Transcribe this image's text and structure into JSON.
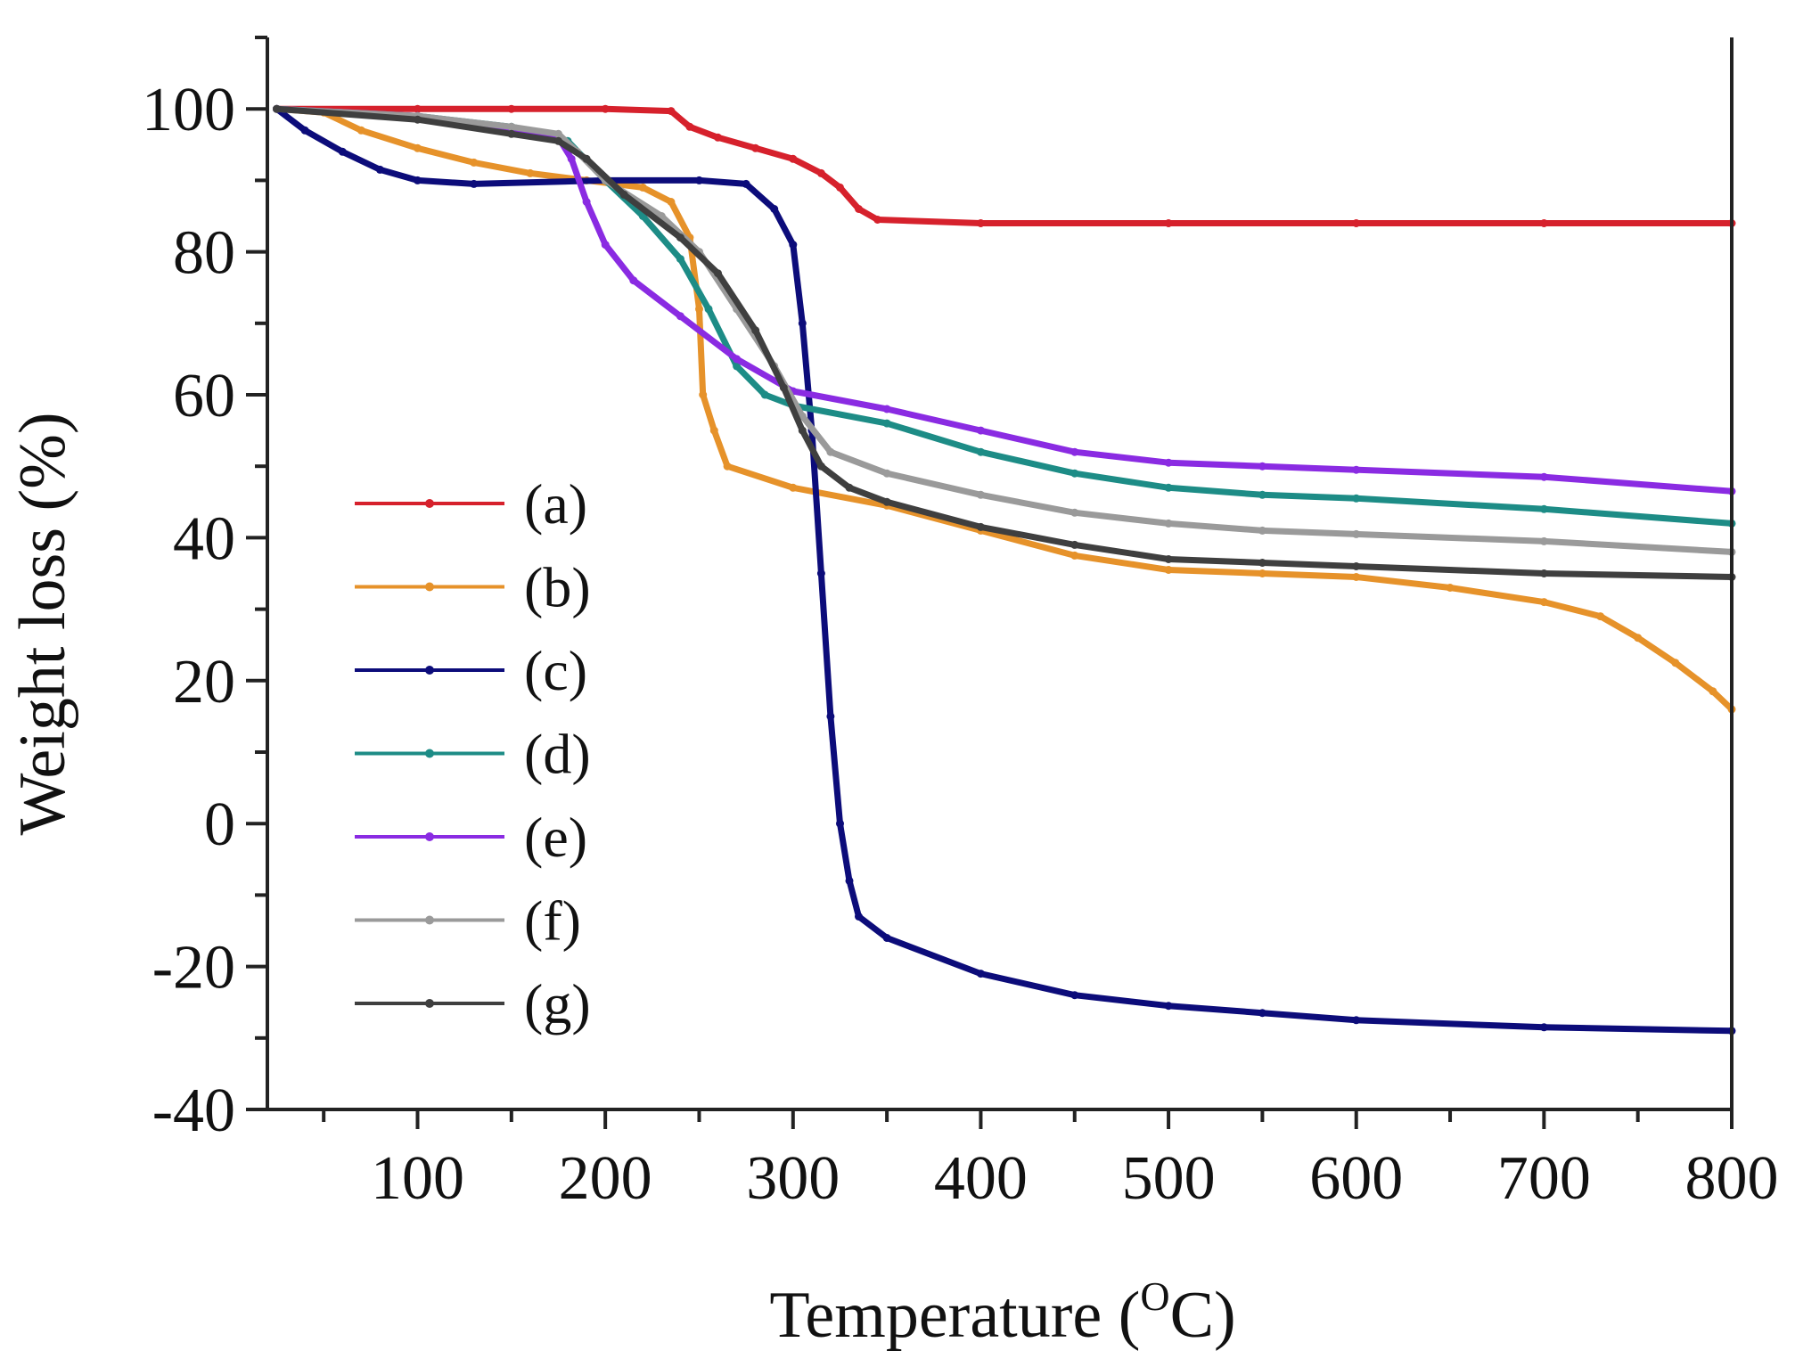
{
  "chart_data": {
    "type": "line",
    "title": "",
    "xlabel": "Temperature (",
    "xlabel_sup": "O",
    "xlabel_unit": "C)",
    "ylabel": "Weight loss (%)",
    "xlim": [
      20,
      800
    ],
    "ylim": [
      -40,
      110
    ],
    "xticks": [
      100,
      200,
      300,
      400,
      500,
      600,
      700,
      800
    ],
    "yticks": [
      -40,
      -20,
      0,
      20,
      40,
      60,
      80,
      100
    ],
    "legend_position": "left-center",
    "series": [
      {
        "name": "(a)",
        "color": "#d6212c",
        "points": [
          [
            25,
            100
          ],
          [
            100,
            100
          ],
          [
            150,
            100
          ],
          [
            200,
            100
          ],
          [
            235,
            99.7
          ],
          [
            245,
            97.5
          ],
          [
            260,
            96
          ],
          [
            280,
            94.5
          ],
          [
            300,
            93
          ],
          [
            315,
            91
          ],
          [
            325,
            89
          ],
          [
            335,
            86
          ],
          [
            345,
            84.5
          ],
          [
            400,
            84
          ],
          [
            500,
            84
          ],
          [
            600,
            84
          ],
          [
            700,
            84
          ],
          [
            800,
            84
          ]
        ]
      },
      {
        "name": "(b)",
        "color": "#e6922a",
        "points": [
          [
            25,
            100
          ],
          [
            50,
            99.5
          ],
          [
            70,
            97
          ],
          [
            100,
            94.5
          ],
          [
            130,
            92.5
          ],
          [
            160,
            91
          ],
          [
            190,
            90
          ],
          [
            220,
            89
          ],
          [
            235,
            87
          ],
          [
            245,
            82
          ],
          [
            250,
            72
          ],
          [
            252,
            60
          ],
          [
            258,
            55
          ],
          [
            265,
            50
          ],
          [
            300,
            47
          ],
          [
            350,
            44.5
          ],
          [
            400,
            41
          ],
          [
            450,
            37.5
          ],
          [
            500,
            35.5
          ],
          [
            550,
            35
          ],
          [
            600,
            34.5
          ],
          [
            650,
            33
          ],
          [
            700,
            31
          ],
          [
            730,
            29
          ],
          [
            750,
            26
          ],
          [
            770,
            22.5
          ],
          [
            790,
            18.5
          ],
          [
            800,
            16
          ]
        ]
      },
      {
        "name": "(c)",
        "color": "#0c0c7a",
        "points": [
          [
            25,
            100
          ],
          [
            40,
            97
          ],
          [
            60,
            94
          ],
          [
            80,
            91.5
          ],
          [
            100,
            90
          ],
          [
            130,
            89.5
          ],
          [
            200,
            90
          ],
          [
            250,
            90
          ],
          [
            275,
            89.5
          ],
          [
            290,
            86
          ],
          [
            300,
            81
          ],
          [
            305,
            70
          ],
          [
            310,
            55
          ],
          [
            315,
            35
          ],
          [
            320,
            15
          ],
          [
            325,
            0
          ],
          [
            330,
            -8
          ],
          [
            335,
            -13
          ],
          [
            350,
            -16
          ],
          [
            400,
            -21
          ],
          [
            450,
            -24
          ],
          [
            500,
            -25.5
          ],
          [
            550,
            -26.5
          ],
          [
            600,
            -27.5
          ],
          [
            700,
            -28.5
          ],
          [
            800,
            -29
          ]
        ]
      },
      {
        "name": "(d)",
        "color": "#1d8c86",
        "points": [
          [
            25,
            100
          ],
          [
            100,
            99
          ],
          [
            150,
            97.5
          ],
          [
            170,
            96.5
          ],
          [
            180,
            95.5
          ],
          [
            200,
            90
          ],
          [
            220,
            85
          ],
          [
            240,
            79
          ],
          [
            255,
            72
          ],
          [
            270,
            64
          ],
          [
            285,
            60
          ],
          [
            300,
            58.5
          ],
          [
            350,
            56
          ],
          [
            400,
            52
          ],
          [
            450,
            49
          ],
          [
            500,
            47
          ],
          [
            550,
            46
          ],
          [
            600,
            45.5
          ],
          [
            700,
            44
          ],
          [
            800,
            42
          ]
        ]
      },
      {
        "name": "(e)",
        "color": "#8a2be2",
        "points": [
          [
            25,
            100
          ],
          [
            100,
            99
          ],
          [
            150,
            97
          ],
          [
            175,
            96
          ],
          [
            182,
            93
          ],
          [
            190,
            87
          ],
          [
            200,
            81
          ],
          [
            215,
            76
          ],
          [
            240,
            71
          ],
          [
            270,
            65
          ],
          [
            300,
            60.5
          ],
          [
            350,
            58
          ],
          [
            400,
            55
          ],
          [
            450,
            52
          ],
          [
            500,
            50.5
          ],
          [
            550,
            50
          ],
          [
            600,
            49.5
          ],
          [
            700,
            48.5
          ],
          [
            800,
            46.5
          ]
        ]
      },
      {
        "name": "(f)",
        "color": "#9a9a9a",
        "points": [
          [
            25,
            100
          ],
          [
            100,
            99
          ],
          [
            150,
            97.5
          ],
          [
            175,
            96.5
          ],
          [
            185,
            94
          ],
          [
            200,
            90
          ],
          [
            230,
            85
          ],
          [
            250,
            80
          ],
          [
            270,
            72
          ],
          [
            290,
            64
          ],
          [
            305,
            57
          ],
          [
            320,
            52
          ],
          [
            350,
            49
          ],
          [
            400,
            46
          ],
          [
            450,
            43.5
          ],
          [
            500,
            42
          ],
          [
            550,
            41
          ],
          [
            600,
            40.5
          ],
          [
            700,
            39.5
          ],
          [
            800,
            38
          ]
        ]
      },
      {
        "name": "(g)",
        "color": "#3f3f3f",
        "points": [
          [
            25,
            100
          ],
          [
            100,
            98.5
          ],
          [
            150,
            96.5
          ],
          [
            175,
            95.5
          ],
          [
            190,
            93
          ],
          [
            210,
            88
          ],
          [
            240,
            82
          ],
          [
            260,
            77
          ],
          [
            280,
            69
          ],
          [
            295,
            61
          ],
          [
            305,
            55
          ],
          [
            315,
            50
          ],
          [
            330,
            47
          ],
          [
            350,
            45
          ],
          [
            400,
            41.5
          ],
          [
            450,
            39
          ],
          [
            500,
            37
          ],
          [
            550,
            36.5
          ],
          [
            600,
            36
          ],
          [
            700,
            35
          ],
          [
            800,
            34.5
          ]
        ]
      }
    ]
  }
}
